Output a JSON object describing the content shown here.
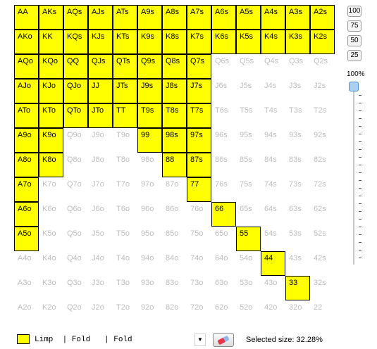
{
  "grid": {
    "rows": [
      [
        "AA",
        "AKs",
        "AQs",
        "AJs",
        "ATs",
        "A9s",
        "A8s",
        "A7s",
        "A6s",
        "A5s",
        "A4s",
        "A3s",
        "A2s"
      ],
      [
        "AKo",
        "KK",
        "KQs",
        "KJs",
        "KTs",
        "K9s",
        "K8s",
        "K7s",
        "K6s",
        "K5s",
        "K4s",
        "K3s",
        "K2s"
      ],
      [
        "AQo",
        "KQo",
        "QQ",
        "QJs",
        "QTs",
        "Q9s",
        "Q8s",
        "Q7s",
        "Q6s",
        "Q5s",
        "Q4s",
        "Q3s",
        "Q2s"
      ],
      [
        "AJo",
        "KJo",
        "QJo",
        "JJ",
        "JTs",
        "J9s",
        "J8s",
        "J7s",
        "J6s",
        "J5s",
        "J4s",
        "J3s",
        "J2s"
      ],
      [
        "ATo",
        "KTo",
        "QTo",
        "JTo",
        "TT",
        "T9s",
        "T8s",
        "T7s",
        "T6s",
        "T5s",
        "T4s",
        "T3s",
        "T2s"
      ],
      [
        "A9o",
        "K9o",
        "Q9o",
        "J9o",
        "T9o",
        "99",
        "98s",
        "97s",
        "96s",
        "95s",
        "94s",
        "93s",
        "92s"
      ],
      [
        "A8o",
        "K8o",
        "Q8o",
        "J8o",
        "T8o",
        "98o",
        "88",
        "87s",
        "86s",
        "85s",
        "84s",
        "83s",
        "82s"
      ],
      [
        "A7o",
        "K7o",
        "Q7o",
        "J7o",
        "T7o",
        "97o",
        "87o",
        "77",
        "76s",
        "75s",
        "74s",
        "73s",
        "72s"
      ],
      [
        "A6o",
        "K6o",
        "Q6o",
        "J6o",
        "T6o",
        "96o",
        "86o",
        "76o",
        "66",
        "65s",
        "64s",
        "63s",
        "62s"
      ],
      [
        "A5o",
        "K5o",
        "Q5o",
        "J5o",
        "T5o",
        "95o",
        "85o",
        "75o",
        "65o",
        "55",
        "54s",
        "53s",
        "52s"
      ],
      [
        "A4o",
        "K4o",
        "Q4o",
        "J4o",
        "T4o",
        "94o",
        "84o",
        "74o",
        "64o",
        "54o",
        "44",
        "43s",
        "42s"
      ],
      [
        "A3o",
        "K3o",
        "Q3o",
        "J3o",
        "T3o",
        "93o",
        "83o",
        "73o",
        "63o",
        "53o",
        "43o",
        "33",
        "32s"
      ],
      [
        "A2o",
        "K2o",
        "Q2o",
        "J2o",
        "T2o",
        "92o",
        "82o",
        "72o",
        "62o",
        "52o",
        "42o",
        "32o",
        "22"
      ]
    ],
    "selected_per_row": [
      [
        0,
        1,
        2,
        3,
        4,
        5,
        6,
        7,
        8,
        9,
        10,
        11,
        12
      ],
      [
        0,
        1,
        2,
        3,
        4,
        5,
        6,
        7,
        8,
        9,
        10,
        11,
        12
      ],
      [
        0,
        1,
        2,
        3,
        4,
        5,
        6,
        7
      ],
      [
        0,
        1,
        2,
        3,
        4,
        5,
        6,
        7
      ],
      [
        0,
        1,
        2,
        3,
        4,
        5,
        6,
        7
      ],
      [
        0,
        1,
        5,
        6,
        7
      ],
      [
        0,
        1,
        6,
        7
      ],
      [
        0,
        7
      ],
      [
        0,
        8
      ],
      [
        0,
        9
      ],
      [
        10
      ],
      [
        11
      ],
      []
    ]
  },
  "zoom_buttons": [
    "100",
    "75",
    "50",
    "25"
  ],
  "slider": {
    "label": "100%",
    "value": 100
  },
  "legend": {
    "color": "#ffff00",
    "actions_text": "Limp  | Fold   | Fold"
  },
  "icons": {
    "dropdown": "dropdown-arrow-icon",
    "eraser": "eraser-icon"
  },
  "status": {
    "selected_size_text": "Selected size: 32.28%"
  },
  "colors": {
    "selected": "#ffff00",
    "unselected_text": "#bdbdbd"
  }
}
